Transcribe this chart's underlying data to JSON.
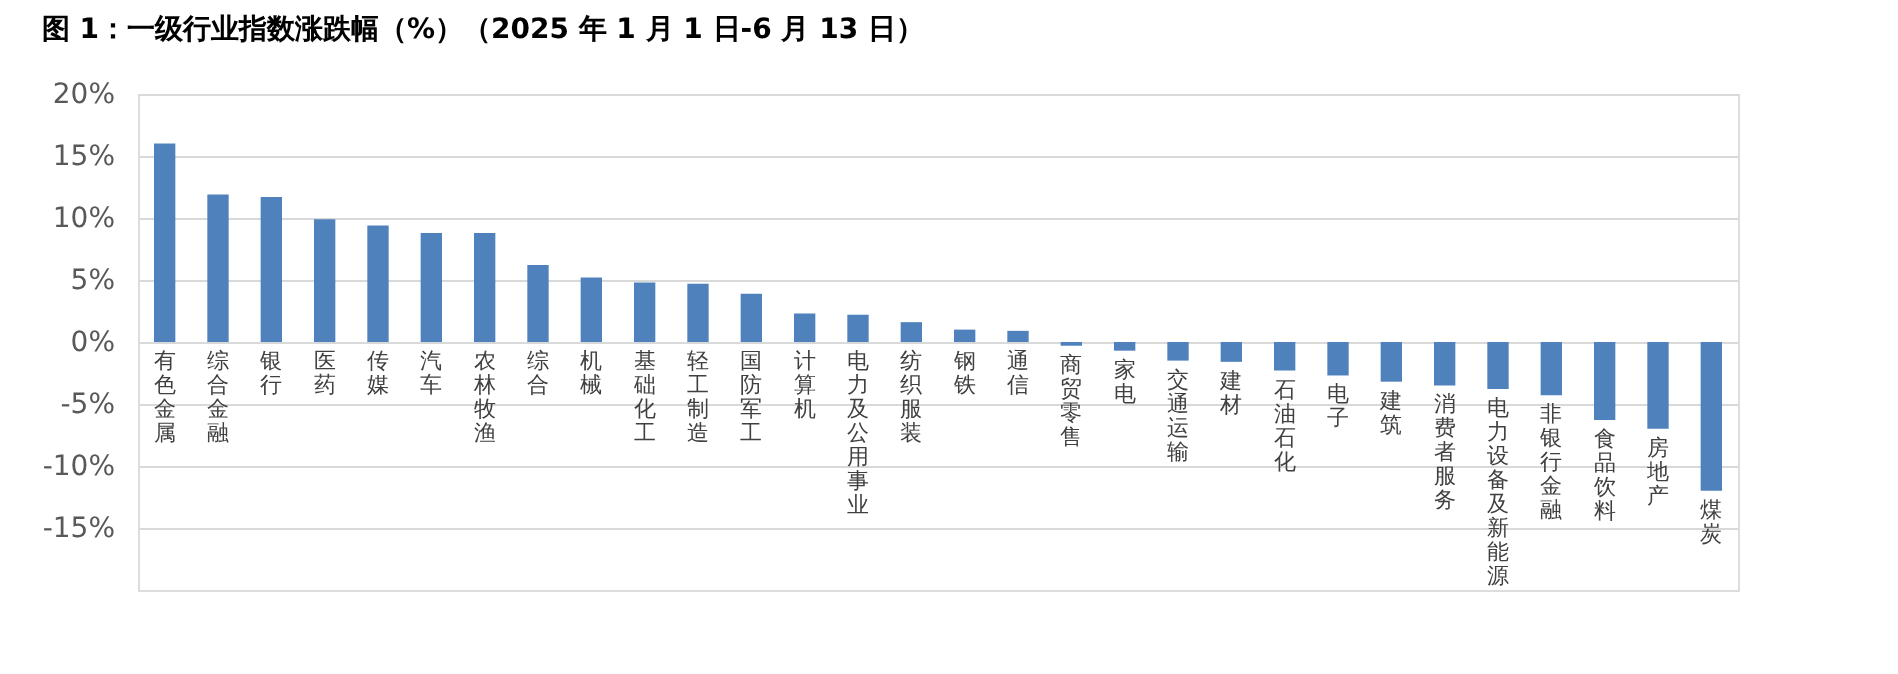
{
  "chart_data": {
    "type": "bar",
    "title": "图 1：一级行业指数涨跌幅（%）（2025 年 1 月 1 日-6 月 13 日）",
    "categories": [
      "有色金属",
      "综合金融",
      "银行",
      "医药",
      "传媒",
      "汽车",
      "农林牧渔",
      "综合",
      "机械",
      "基础化工",
      "轻工制造",
      "国防军工",
      "计算机",
      "电力及公用事业",
      "纺织服装",
      "钢铁",
      "通信",
      "商贸零售",
      "家电",
      "交通运输",
      "建材",
      "石油石化",
      "电子",
      "建筑",
      "消费者服务",
      "电力设备及新能源",
      "非银行金融",
      "食品饮料",
      "房地产",
      "煤炭"
    ],
    "values": [
      16.0,
      11.9,
      11.7,
      9.9,
      9.4,
      8.8,
      8.8,
      6.2,
      5.2,
      4.8,
      4.7,
      3.9,
      2.3,
      2.2,
      1.6,
      1.0,
      0.9,
      -0.3,
      -0.7,
      -1.5,
      -1.6,
      -2.3,
      -2.7,
      -3.2,
      -3.5,
      -3.8,
      -4.3,
      -6.3,
      -7.0,
      -12.0
    ],
    "color": "#4f81bd",
    "ylim": [
      -20,
      20
    ],
    "yticks": [
      {
        "value": 20,
        "label": "20%"
      },
      {
        "value": 15,
        "label": "15%"
      },
      {
        "value": 10,
        "label": "10%"
      },
      {
        "value": 5,
        "label": "5%"
      },
      {
        "value": 0,
        "label": "0%"
      },
      {
        "value": -5,
        "label": "-5%"
      },
      {
        "value": -10,
        "label": "-10%"
      },
      {
        "value": -15,
        "label": "-15%"
      }
    ],
    "grid": "y"
  }
}
